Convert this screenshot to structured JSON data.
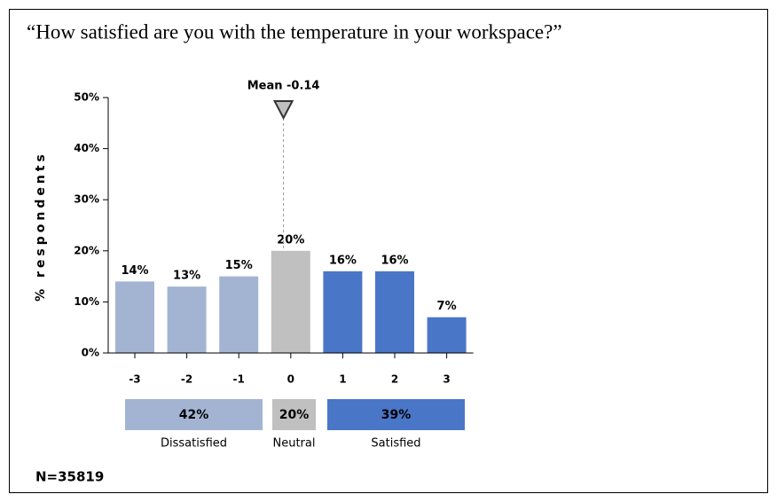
{
  "chart_data": {
    "type": "bar",
    "title": "“How satisfied are you with the temperature in your workspace?”",
    "y_label": "% respondents",
    "categories": [
      "-3",
      "-2",
      "-1",
      "0",
      "1",
      "2",
      "3"
    ],
    "values": [
      14,
      13,
      15,
      20,
      16,
      16,
      7
    ],
    "value_labels": [
      "14%",
      "13%",
      "15%",
      "20%",
      "16%",
      "16%",
      "7%"
    ],
    "colors": [
      "#a3b4d3",
      "#a3b4d3",
      "#a3b4d3",
      "#c0c0c0",
      "#4a76c8",
      "#4a76c8",
      "#4a76c8"
    ],
    "ylim": [
      0,
      50
    ],
    "yticks": [
      {
        "value": 0,
        "label": "0%"
      },
      {
        "value": 10,
        "label": "10%"
      },
      {
        "value": 20,
        "label": "20%"
      },
      {
        "value": 30,
        "label": "30%"
      },
      {
        "value": 40,
        "label": "40%"
      },
      {
        "value": 50,
        "label": "50%"
      }
    ],
    "mean": {
      "value": -0.14,
      "label": "Mean -0.14"
    },
    "groups": [
      {
        "name": "Dissatisfied",
        "value": 42,
        "label": "42%",
        "color": "#a3b4d3"
      },
      {
        "name": "Neutral",
        "value": 20,
        "label": "20%",
        "color": "#c0c0c0"
      },
      {
        "name": "Satisfied",
        "value": 39,
        "label": "39%",
        "color": "#4a76c8"
      }
    ],
    "n_label": "N=35819"
  }
}
